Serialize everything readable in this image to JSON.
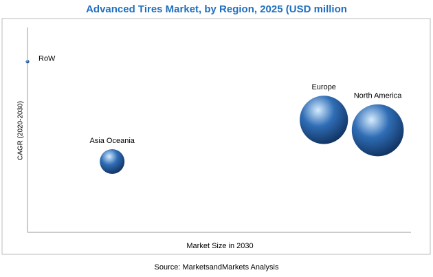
{
  "chart_data": {
    "type": "bubble",
    "title": "Advanced Tires Market, by Region, 2025 (USD million",
    "x_label": "Market Size in 2030",
    "y_label": "CAGR (2020-2030)",
    "source": "Source: MarketsandMarkets Analysis",
    "categories": [
      "RoW",
      "Asia Oceania",
      "Europe",
      "North America"
    ],
    "x": [
      0,
      22,
      77,
      91
    ],
    "values": [
      82,
      34,
      54,
      49
    ],
    "sizes": [
      0.2,
      10,
      38,
      44
    ],
    "color": "#2f6db5",
    "xlim": [
      0,
      100
    ],
    "ylim": [
      0,
      100
    ]
  }
}
